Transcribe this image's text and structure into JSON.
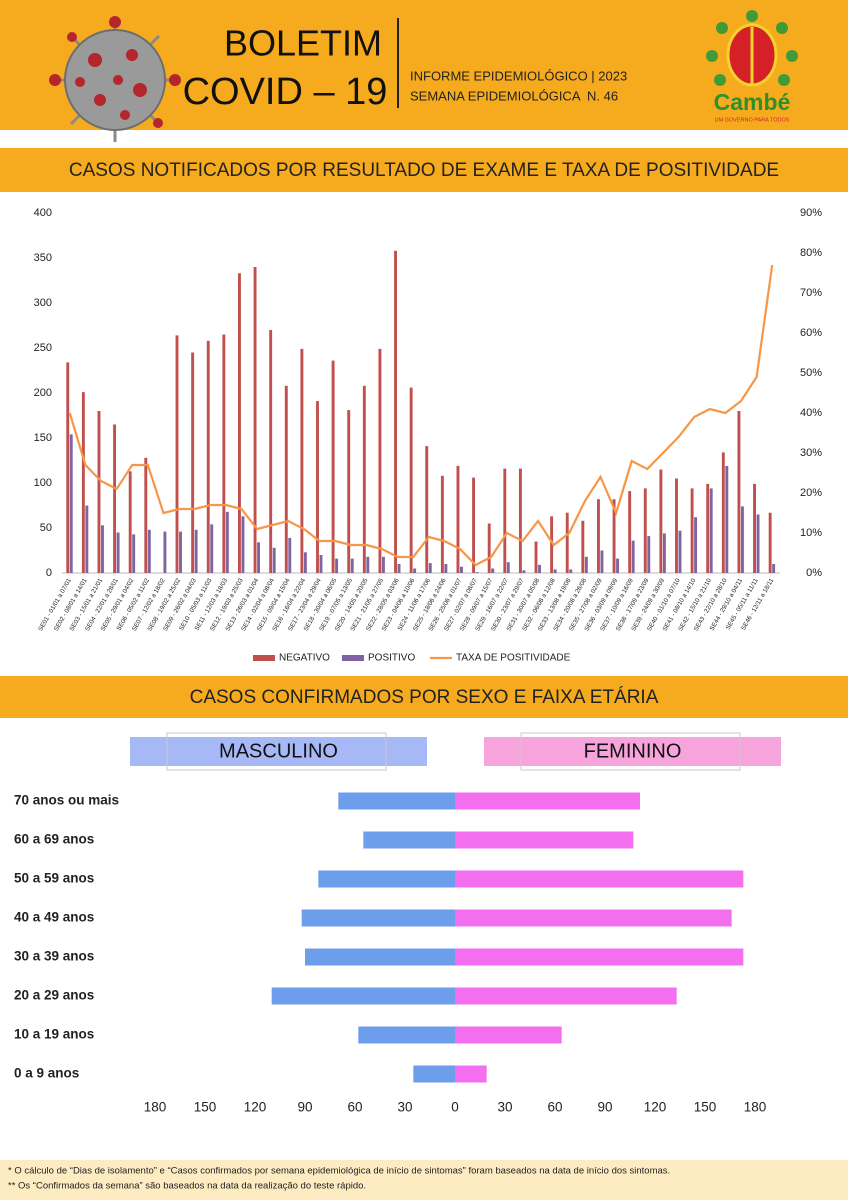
{
  "header": {
    "title": "BOLETIM",
    "subtitle": "COVID – 19",
    "info": "INFORME EPIDEMIOLÓGICO | 2023",
    "week": "SEMANA EPIDEMIOLÓGICA  N. 46",
    "logo": "Cambé",
    "slogan": "UM GOVERNO PARA TODOS"
  },
  "chart_data": [
    {
      "type": "bar",
      "title": "CASOS NOTIFICADOS POR RESULTADO DE EXAME E TAXA DE POSITIVIDADE",
      "categories": [
        "SE01 - 01/01 a 07/01",
        "SE02 - 08/01 a 14/01",
        "SE03 - 15/01 a 21/01",
        "SE04 - 22/01 a 28/01",
        "SE05 - 29/01 a 04/02",
        "SE06 - 05/02 a 11/02",
        "SE07 - 12/02 a 18/02",
        "SE08 - 19/02 a 25/02",
        "SE09 - 26/02 a 04/03",
        "SE10 - 05/03 a 11/03",
        "SE11 - 12/03 a 18/03",
        "SE12 - 19/03 a 25/03",
        "SE13 - 26/03 a 01/04",
        "SE14 - 02/04 a 08/04",
        "SE15 - 09/04 a 15/04",
        "SE16 - 16/04 a 22/04",
        "SE17 - 23/04 a 29/04",
        "SE18 - 30/04 a 06/05",
        "SE19 - 07/05 a 13/05",
        "SE20 - 14/05 a 20/05",
        "SE21 - 21/05 a 27/05",
        "SE22 - 28/05 a 03/06",
        "SE23 - 04/06 a 10/06",
        "SE24 - 11/06 a 17/06",
        "SE25 - 18/06 a 24/06",
        "SE26 - 25/06 a 01/07",
        "SE27 - 02/07 a 08/07",
        "SE28 - 09/07 a 15/07",
        "SE29 - 16/07 a 22/07",
        "SE30 - 23/07 a 29/07",
        "SE31 - 30/07 a 05/08",
        "SE32 - 06/08 a 12/08",
        "SE33 - 13/08 a 19/08",
        "SE34 - 20/08 a 26/08",
        "SE35 - 27/08 a 02/09",
        "SE36 - 03/09 a 09/09",
        "SE37 - 10/09 a 16/09",
        "SE38 - 17/09 a 23/09",
        "SE39 - 24/09 a 30/09",
        "SE40 - 01/10 a 07/10",
        "SE41 - 08/10 a 14/10",
        "SE42 - 15/10 a 21/10",
        "SE43 - 22/10 a 28/10",
        "SE44 - 29/10 a 04/11",
        "SE45 - 05/11 a 11/11",
        "SE46 - 12/11 a 18/11"
      ],
      "series": [
        {
          "name": "NEGATIVO",
          "color": "#c0504d",
          "values": [
            234,
            201,
            180,
            165,
            113,
            128,
            0,
            264,
            245,
            258,
            265,
            333,
            340,
            270,
            208,
            249,
            191,
            236,
            181,
            208,
            249,
            358,
            206,
            141,
            108,
            119,
            106,
            55,
            116,
            116,
            35,
            63,
            67,
            58,
            82,
            82,
            91,
            94,
            115,
            105,
            94,
            99,
            134,
            180,
            99,
            67
          ]
        },
        {
          "name": "POSITIVO",
          "color": "#8064a2",
          "values": [
            154,
            75,
            53,
            45,
            43,
            48,
            46,
            46,
            48,
            54,
            68,
            63,
            34,
            28,
            39,
            23,
            20,
            16,
            16,
            18,
            18,
            10,
            5,
            11,
            10,
            7,
            1,
            5,
            12,
            3,
            9,
            4,
            4,
            18,
            25,
            16,
            36,
            41,
            44,
            47,
            62,
            94,
            119,
            74,
            65,
            10
          ]
        },
        {
          "name": "TAXA DE POSITIVIDADE",
          "color": "#f79646",
          "type": "line",
          "axis": "y2",
          "values": [
            40,
            27,
            23,
            21,
            27,
            27,
            15,
            16,
            16,
            17,
            17,
            16,
            11,
            12,
            13,
            11,
            8,
            8,
            7,
            7,
            6,
            4,
            4,
            9,
            8,
            6,
            2,
            4,
            10,
            8,
            13,
            7,
            10,
            18,
            24,
            15,
            28,
            26,
            30,
            34,
            39,
            41,
            40,
            43,
            49,
            77
          ]
        }
      ],
      "ylim": [
        0,
        400
      ],
      "yticks": [
        0,
        50,
        100,
        150,
        200,
        250,
        300,
        350,
        400
      ],
      "y2lim": [
        0,
        90
      ],
      "y2ticks": [
        {
          "value": 0,
          "label": "0%"
        },
        {
          "value": 10,
          "label": "10%"
        },
        {
          "value": 20,
          "label": "20%"
        },
        {
          "value": 30,
          "label": "30%"
        },
        {
          "value": 40,
          "label": "40%"
        },
        {
          "value": 50,
          "label": "50%"
        },
        {
          "value": 60,
          "label": "60%"
        },
        {
          "value": 70,
          "label": "70%"
        },
        {
          "value": 80,
          "label": "80%"
        },
        {
          "value": 90,
          "label": "90%"
        }
      ],
      "grid": false,
      "legend": "bottom"
    },
    {
      "type": "pyramid",
      "title": "CASOS CONFIRMADOS POR SEXO E FAIXA ETÁRIA",
      "categories": [
        "70 anos ou mais",
        "60 a 69 anos",
        "50 a 59 anos",
        "40 a 49 anos",
        "30 a 39 anos",
        "20 a 29 anos",
        "10 a 19 anos",
        "0 a 9 anos"
      ],
      "series": [
        {
          "name": "MASCULINO",
          "color": "#6d9eeb",
          "side": "left",
          "values": [
            70,
            55,
            82,
            92,
            90,
            110,
            58,
            25
          ]
        },
        {
          "name": "FEMININO",
          "color": "#f46ef0",
          "side": "right",
          "values": [
            111,
            107,
            173,
            166,
            173,
            133,
            64,
            19
          ]
        }
      ],
      "xlim": [
        -195,
        195
      ],
      "xticks": [
        {
          "value": -180,
          "label": "180"
        },
        {
          "value": -150,
          "label": "150"
        },
        {
          "value": -120,
          "label": "120"
        },
        {
          "value": -90,
          "label": "90"
        },
        {
          "value": -60,
          "label": "60"
        },
        {
          "value": -30,
          "label": "30"
        },
        0,
        30,
        60,
        90,
        120,
        150,
        180
      ],
      "grid": false
    }
  ],
  "footnotes": [
    "* O cálculo de “Dias de isolamento” e “Casos confirmados por semana epidemiológica de início de sintomas” foram baseados na data de início dos sintomas.",
    "** Os “Confirmados da semana” são baseados na data da realização do teste rápido."
  ]
}
